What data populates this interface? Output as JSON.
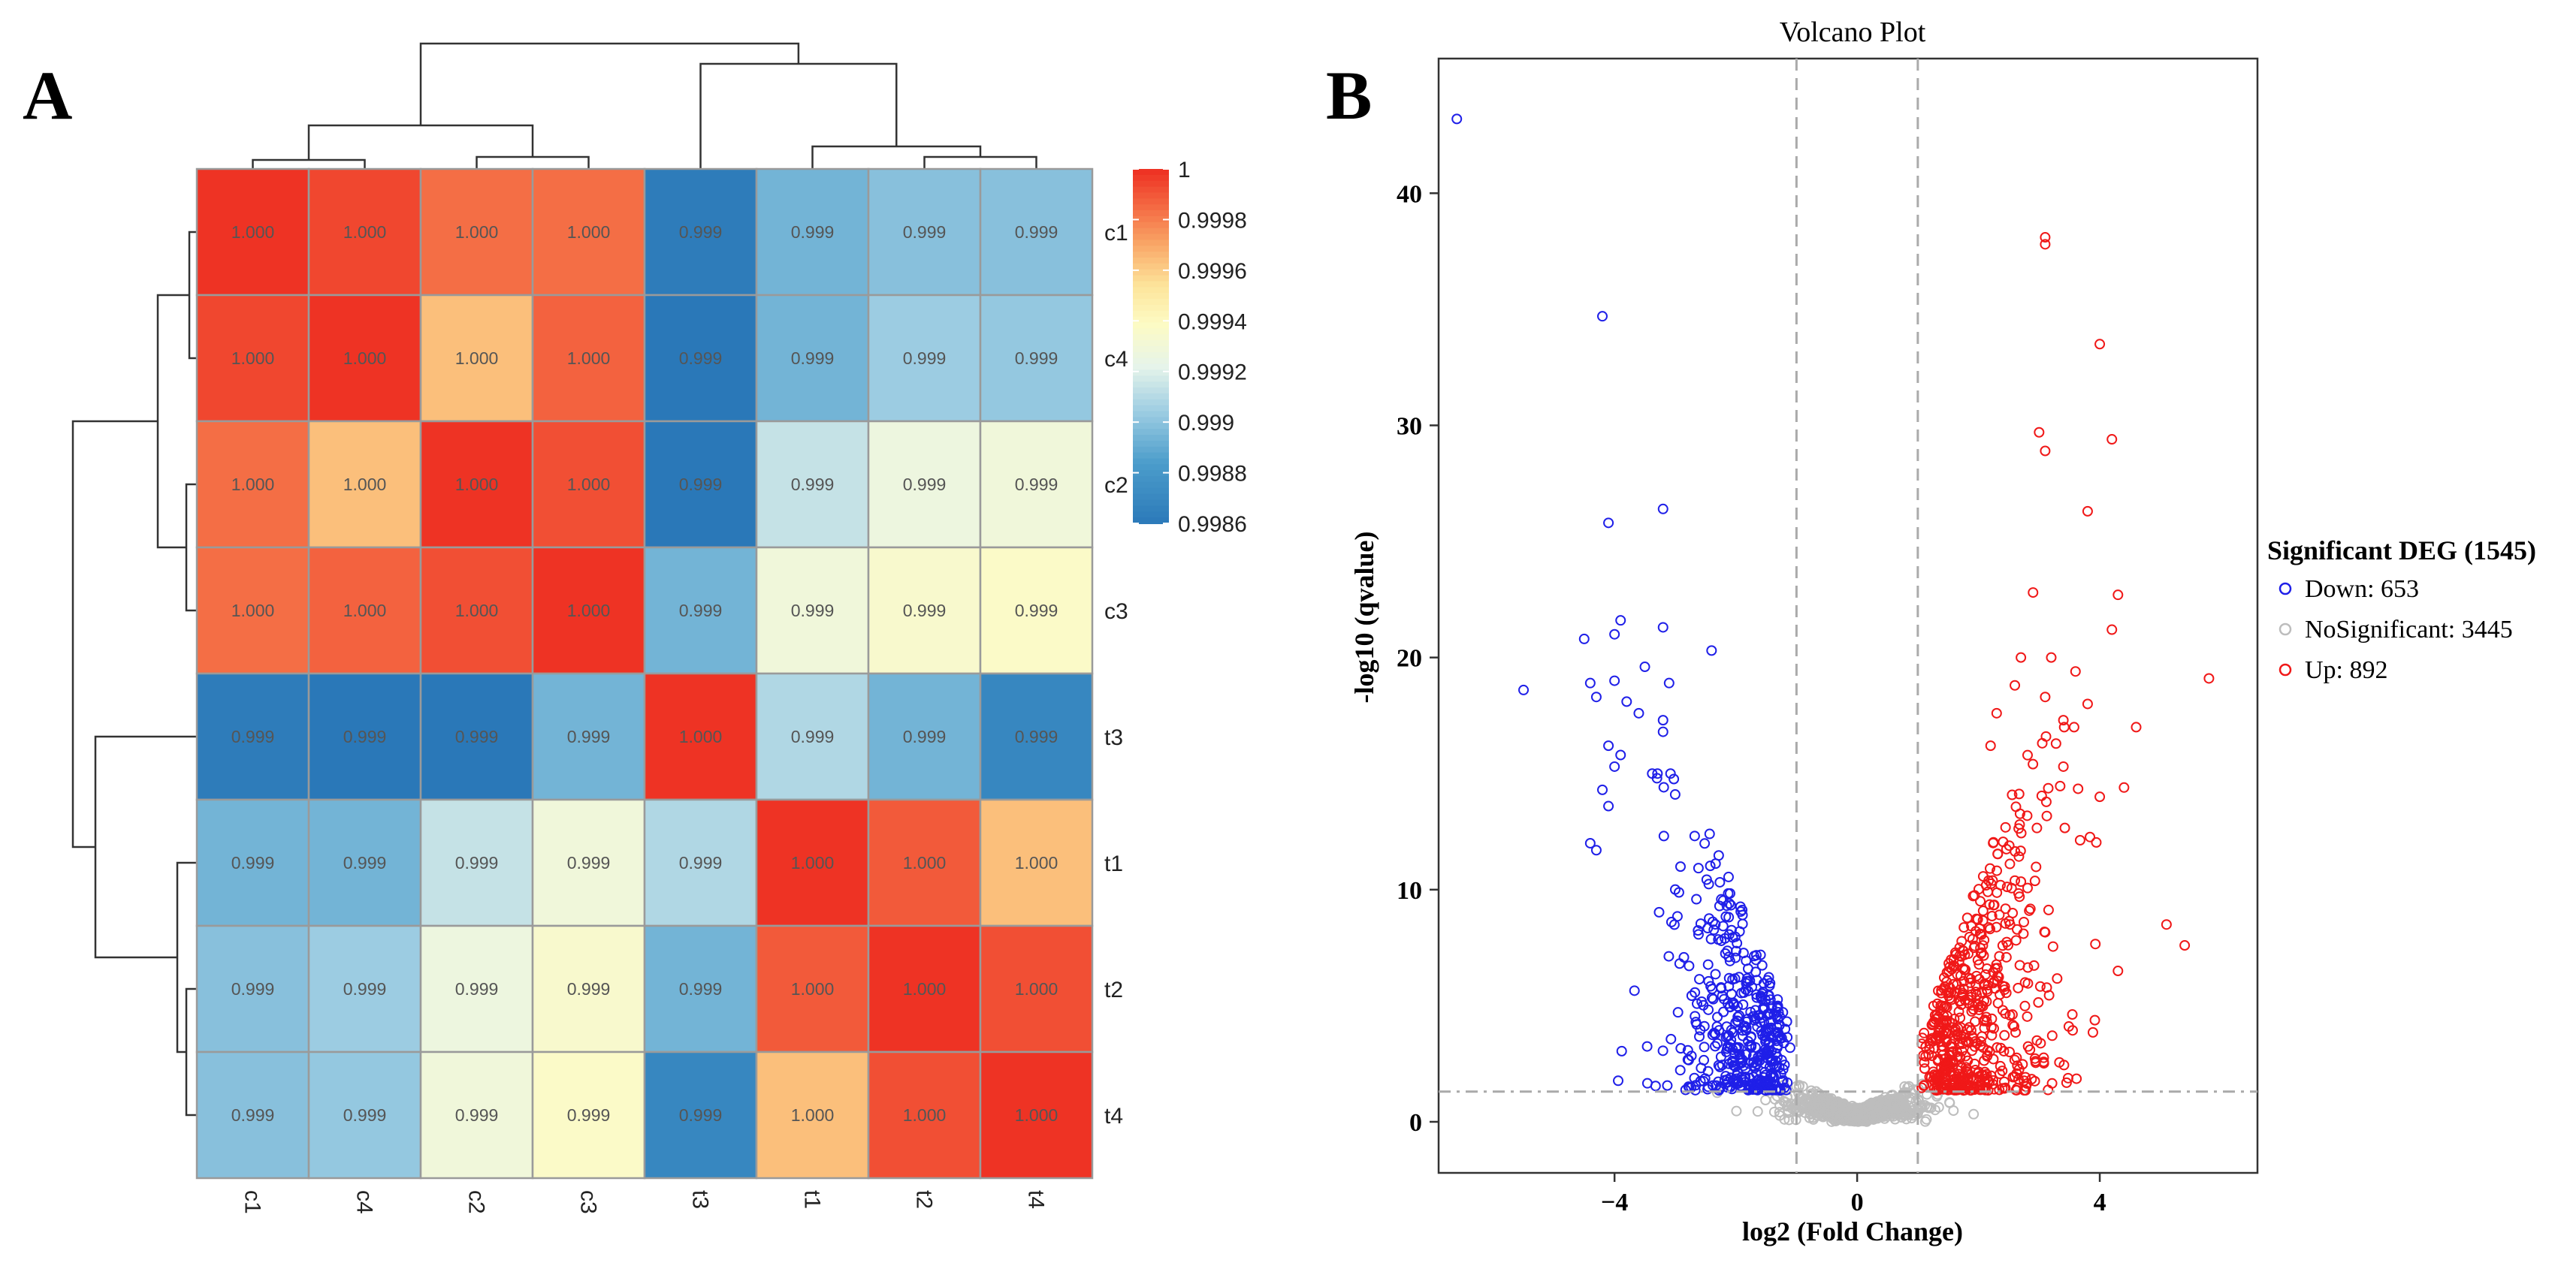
{
  "panels": {
    "a": {
      "label": "A"
    },
    "b": {
      "label": "B"
    }
  },
  "chart_data": [
    {
      "type": "heatmap",
      "title": "",
      "rows": [
        "c1",
        "c4",
        "c2",
        "c3",
        "t3",
        "t1",
        "t2",
        "t4"
      ],
      "columns": [
        "c1",
        "c4",
        "c2",
        "c3",
        "t3",
        "t1",
        "t2",
        "t4"
      ],
      "cell_labels": [
        [
          "1.000",
          "1.000",
          "1.000",
          "1.000",
          "0.999",
          "0.999",
          "0.999",
          "0.999"
        ],
        [
          "1.000",
          "1.000",
          "1.000",
          "1.000",
          "0.999",
          "0.999",
          "0.999",
          "0.999"
        ],
        [
          "1.000",
          "1.000",
          "1.000",
          "1.000",
          "0.999",
          "0.999",
          "0.999",
          "0.999"
        ],
        [
          "1.000",
          "1.000",
          "1.000",
          "1.000",
          "0.999",
          "0.999",
          "0.999",
          "0.999"
        ],
        [
          "0.999",
          "0.999",
          "0.999",
          "0.999",
          "1.000",
          "0.999",
          "0.999",
          "0.999"
        ],
        [
          "0.999",
          "0.999",
          "0.999",
          "0.999",
          "0.999",
          "1.000",
          "1.000",
          "1.000"
        ],
        [
          "0.999",
          "0.999",
          "0.999",
          "0.999",
          "0.999",
          "1.000",
          "1.000",
          "1.000"
        ],
        [
          "0.999",
          "0.999",
          "0.999",
          "0.999",
          "0.999",
          "1.000",
          "1.000",
          "1.000"
        ]
      ],
      "values": [
        [
          1.0,
          0.99995,
          0.99985,
          0.99985,
          0.99863,
          0.99895,
          0.999,
          0.999
        ],
        [
          0.99995,
          1.0,
          0.99965,
          0.99988,
          0.9986,
          0.99895,
          0.99905,
          0.99903
        ],
        [
          0.99985,
          0.99965,
          1.0,
          0.99993,
          0.9986,
          0.99915,
          0.99928,
          0.9993
        ],
        [
          0.99985,
          0.99988,
          0.99993,
          1.0,
          0.99895,
          0.9993,
          0.99936,
          0.99938
        ],
        [
          0.99863,
          0.9986,
          0.9986,
          0.99895,
          1.0,
          0.9991,
          0.99895,
          0.9987
        ],
        [
          0.99895,
          0.99895,
          0.99915,
          0.9993,
          0.9991,
          1.0,
          0.9999,
          0.99965
        ],
        [
          0.999,
          0.99905,
          0.99928,
          0.99936,
          0.99895,
          0.9999,
          1.0,
          0.99993
        ],
        [
          0.999,
          0.99903,
          0.9993,
          0.99938,
          0.9987,
          0.99965,
          0.99993,
          1.0
        ]
      ],
      "color_scale": {
        "min": 0.9986,
        "max": 1.0,
        "low": "#2A78B8",
        "mid": "#FDFBC4",
        "high": "#EE3324"
      },
      "legend_ticks": [
        {
          "value": 1.0,
          "label": "1"
        },
        {
          "value": 0.9998,
          "label": "0.9998"
        },
        {
          "value": 0.9996,
          "label": "0.9996"
        },
        {
          "value": 0.9994,
          "label": "0.9994"
        },
        {
          "value": 0.9992,
          "label": "0.9992"
        },
        {
          "value": 0.999,
          "label": "0.999"
        },
        {
          "value": 0.9988,
          "label": "0.9988"
        },
        {
          "value": 0.9986,
          "label": "0.9986"
        }
      ],
      "row_dendrogram": "((c1,c4),(c2,c3)),(t3,(t1,(t2,t4)))",
      "column_dendrogram": "((c1,c4),(c2,c3)),(t3,(t1,(t2,t4)))"
    },
    {
      "type": "scatter",
      "title": "Volcano Plot",
      "xlabel": "log2 (Fold Change)",
      "ylabel": "-log10 (qvalue)",
      "xlim": [
        -6.9,
        6.6
      ],
      "ylim": [
        -2.2,
        45.8
      ],
      "xticks": [
        -4,
        0,
        4
      ],
      "yticks": [
        0,
        10,
        20,
        30,
        40
      ],
      "thresholds": {
        "log2fc": [
          -1,
          1
        ],
        "neglog10q": 1.3
      },
      "legend": {
        "title": "Significant DEG (1545)",
        "entries": [
          {
            "label": "Down: 653",
            "color": "#1F1FE8"
          },
          {
            "label": "NoSignificant: 3445",
            "color": "#BDBDBD"
          },
          {
            "label": "Up: 892",
            "color": "#F01818"
          }
        ]
      },
      "series": [
        {
          "name": "Down",
          "count": 653,
          "color": "#1F1FE8",
          "outliers": [
            [
              -6.6,
              43.2
            ],
            [
              -4.2,
              34.7
            ],
            [
              -3.2,
              26.4
            ],
            [
              -4.1,
              25.8
            ],
            [
              -3.9,
              21.6
            ],
            [
              -3.2,
              21.3
            ],
            [
              -4.0,
              21.0
            ],
            [
              -4.5,
              20.8
            ],
            [
              -5.5,
              18.6
            ],
            [
              -2.4,
              20.3
            ],
            [
              -3.5,
              19.6
            ],
            [
              -4.0,
              19.0
            ],
            [
              -4.4,
              18.9
            ],
            [
              -3.1,
              18.9
            ],
            [
              -3.8,
              18.1
            ],
            [
              -4.3,
              18.3
            ],
            [
              -3.6,
              17.6
            ],
            [
              -3.2,
              17.3
            ],
            [
              -3.2,
              16.8
            ],
            [
              -4.1,
              16.2
            ],
            [
              -3.9,
              15.8
            ],
            [
              -4.0,
              15.3
            ],
            [
              -3.3,
              14.8
            ],
            [
              -4.2,
              14.3
            ],
            [
              -3.0,
              14.1
            ],
            [
              -4.1,
              13.6
            ],
            [
              -4.4,
              12.0
            ],
            [
              -4.3,
              11.7
            ]
          ]
        },
        {
          "name": "NoSignificant",
          "count": 3445,
          "color": "#BDBDBD",
          "outliers": []
        },
        {
          "name": "Up",
          "count": 892,
          "color": "#F01818",
          "outliers": [
            [
              3.1,
              38.1
            ],
            [
              3.1,
              37.8
            ],
            [
              4.0,
              33.5
            ],
            [
              3.0,
              29.7
            ],
            [
              4.2,
              29.4
            ],
            [
              3.1,
              28.9
            ],
            [
              3.8,
              26.3
            ],
            [
              2.9,
              22.8
            ],
            [
              4.3,
              22.7
            ],
            [
              5.8,
              19.1
            ],
            [
              4.2,
              21.2
            ],
            [
              3.2,
              20.0
            ],
            [
              2.7,
              20.0
            ],
            [
              3.6,
              19.4
            ],
            [
              2.6,
              18.8
            ],
            [
              3.1,
              18.3
            ],
            [
              3.8,
              18.0
            ],
            [
              2.3,
              17.6
            ],
            [
              3.4,
              17.3
            ],
            [
              4.4,
              14.4
            ],
            [
              2.2,
              16.2
            ],
            [
              3.4,
              15.3
            ],
            [
              4.0,
              14.0
            ],
            [
              5.1,
              8.5
            ],
            [
              5.4,
              7.6
            ],
            [
              4.3,
              6.5
            ]
          ]
        }
      ]
    }
  ]
}
